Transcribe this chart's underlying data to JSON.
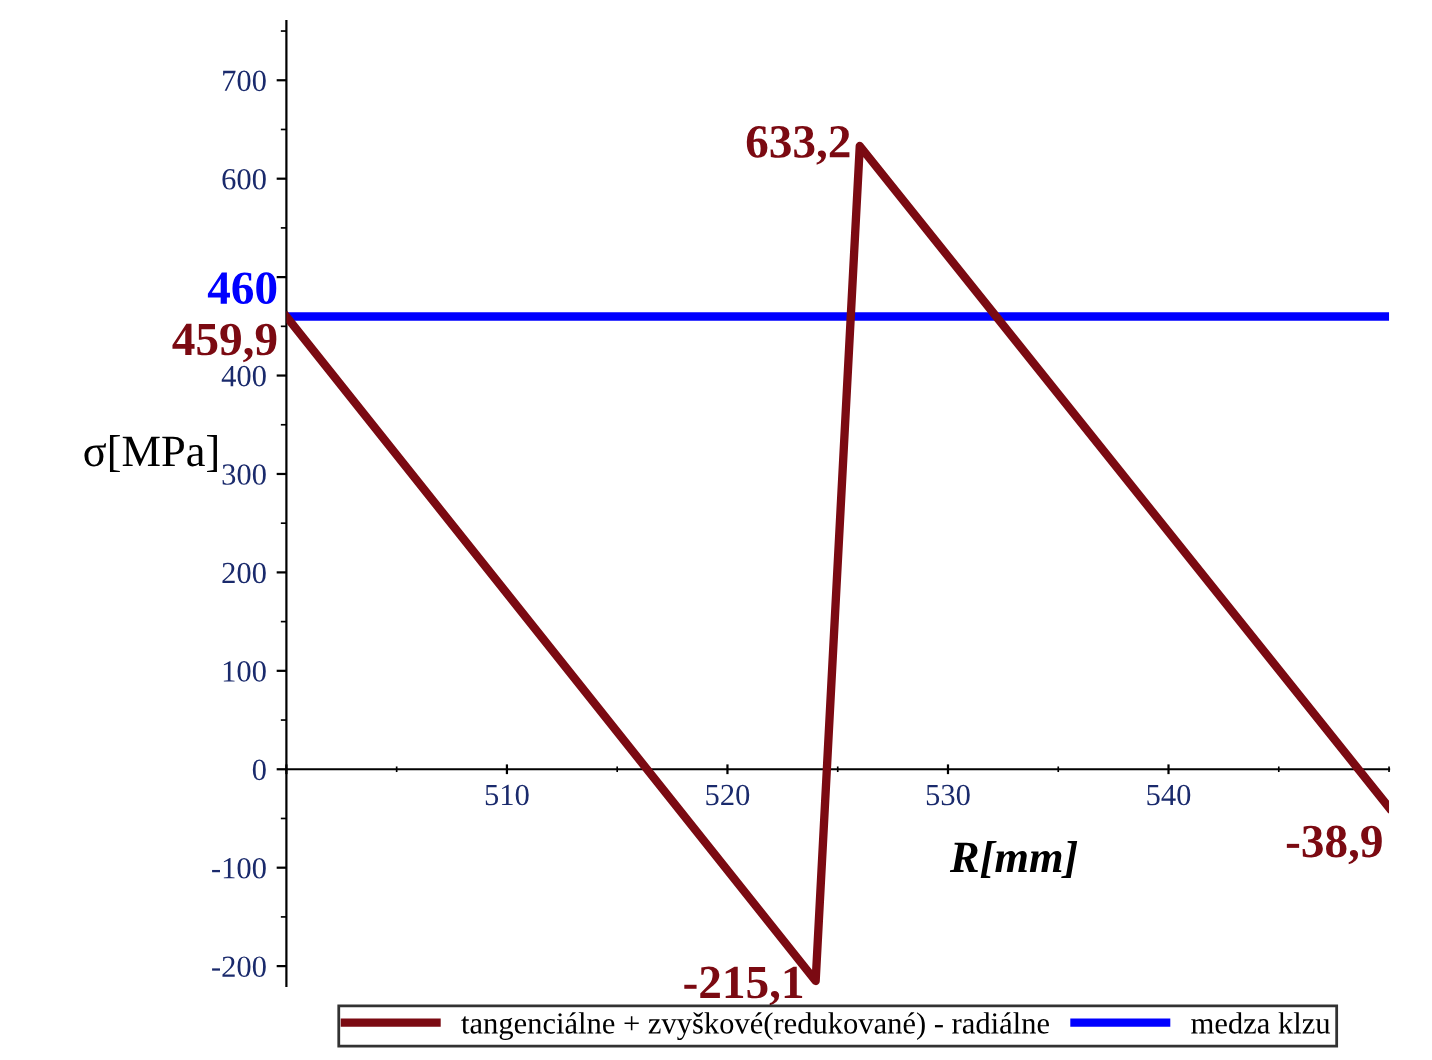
{
  "chart_data": {
    "type": "line",
    "xlabel": "R[mm]",
    "ylabel": "σ[MPa]",
    "xlim": [
      500,
      550
    ],
    "xticks": [
      {
        "value": 500,
        "label": null
      },
      510,
      520,
      530,
      540
    ],
    "ylim": [
      -220,
      760
    ],
    "yticks": [
      -200,
      -100,
      0,
      100,
      200,
      300,
      400,
      {
        "value": 500,
        "label": null
      },
      600,
      700
    ],
    "grid": false,
    "legend": "bottom",
    "marker": "none",
    "line_style": "solid",
    "series": [
      {
        "name": "tangenciálne + zvyškové(redukované) - radiálne",
        "color": "#7b0a12",
        "x": [
          500,
          524,
          526,
          550
        ],
        "values": [
          459.9,
          -215.1,
          633.2,
          -38.9
        ],
        "value_labels": [
          "459,9",
          "-215,1",
          "633,2",
          "-38,9"
        ]
      },
      {
        "name": "medza klzu",
        "color": "#0000ff",
        "x": [
          500,
          550
        ],
        "values": [
          460,
          460
        ],
        "value_labels": [
          "460",
          null
        ]
      }
    ]
  }
}
